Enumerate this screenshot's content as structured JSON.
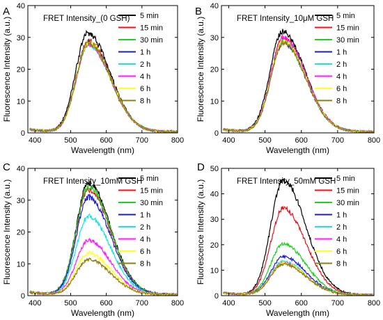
{
  "figure": {
    "legend_labels": [
      "5 min",
      "15 min",
      "30 min",
      "1 h",
      "2 h",
      "4 h",
      "6 h",
      "8 h"
    ],
    "series_colors": [
      "#000000",
      "#e8141b",
      "#1fd11f",
      "#1a1ad6",
      "#19e3e3",
      "#ff1aff",
      "#ffff19",
      "#8f7f12"
    ]
  },
  "chart_data": [
    {
      "panel": "A",
      "type": "line",
      "title": "FRET Intensity_(0 GSH)",
      "xlabel": "Wavelength (nm)",
      "ylabel": "Fluorescence Intensity (a.u.)",
      "xlim": [
        380,
        800
      ],
      "ylim": [
        0,
        40
      ],
      "xticks": [
        400,
        500,
        600,
        700,
        800
      ],
      "yticks": [
        0,
        10,
        20,
        30,
        40
      ],
      "legend_position": "top-right",
      "series": [
        {
          "name": "5 min",
          "peak": 31,
          "peak_wavelength": 548
        },
        {
          "name": "15 min",
          "peak": 28.5,
          "peak_wavelength": 550
        },
        {
          "name": "30 min",
          "peak": 27.5,
          "peak_wavelength": 550
        },
        {
          "name": "1 h",
          "peak": 28,
          "peak_wavelength": 550
        },
        {
          "name": "2 h",
          "peak": 27.5,
          "peak_wavelength": 550
        },
        {
          "name": "4 h",
          "peak": 27.5,
          "peak_wavelength": 550
        },
        {
          "name": "6 h",
          "peak": 28,
          "peak_wavelength": 550
        },
        {
          "name": "8 h",
          "peak": 28,
          "peak_wavelength": 550
        }
      ]
    },
    {
      "panel": "B",
      "type": "line",
      "title": "FRET Intensity_10μM GSH",
      "xlabel": "Wavelength (nm)",
      "ylabel": "Fluorescence Intensity (a.u.)",
      "xlim": [
        380,
        800
      ],
      "ylim": [
        0,
        40
      ],
      "xticks": [
        400,
        500,
        600,
        700,
        800
      ],
      "yticks": [
        0,
        10,
        20,
        30,
        40
      ],
      "legend_position": "top-right",
      "series": [
        {
          "name": "5 min",
          "peak": 31.5,
          "peak_wavelength": 548
        },
        {
          "name": "15 min",
          "peak": 29.5,
          "peak_wavelength": 550
        },
        {
          "name": "30 min",
          "peak": 28.5,
          "peak_wavelength": 550
        },
        {
          "name": "1 h",
          "peak": 28,
          "peak_wavelength": 550
        },
        {
          "name": "2 h",
          "peak": 28.5,
          "peak_wavelength": 550
        },
        {
          "name": "4 h",
          "peak": 29.5,
          "peak_wavelength": 550
        },
        {
          "name": "6 h",
          "peak": 28.5,
          "peak_wavelength": 550
        },
        {
          "name": "8 h",
          "peak": 28,
          "peak_wavelength": 550
        }
      ]
    },
    {
      "panel": "C",
      "type": "line",
      "title": "FRET Intensity_10mM GSH",
      "xlabel": "Wavelength (nm)",
      "ylabel": "Fluorescence Intensity (a.u.)",
      "xlim": [
        380,
        800
      ],
      "ylim": [
        0,
        40
      ],
      "xticks": [
        400,
        500,
        600,
        700,
        800
      ],
      "yticks": [
        0,
        10,
        20,
        30,
        40
      ],
      "legend_position": "top-right",
      "series": [
        {
          "name": "5 min",
          "peak": 35,
          "peak_wavelength": 550
        },
        {
          "name": "15 min",
          "peak": 33,
          "peak_wavelength": 550
        },
        {
          "name": "30 min",
          "peak": 34,
          "peak_wavelength": 550
        },
        {
          "name": "1 h",
          "peak": 30.5,
          "peak_wavelength": 550
        },
        {
          "name": "2 h",
          "peak": 24.5,
          "peak_wavelength": 550
        },
        {
          "name": "4 h",
          "peak": 17,
          "peak_wavelength": 550
        },
        {
          "name": "6 h",
          "peak": 13,
          "peak_wavelength": 550
        },
        {
          "name": "8 h",
          "peak": 11,
          "peak_wavelength": 550
        }
      ]
    },
    {
      "panel": "D",
      "type": "line",
      "title": "FRET Intensity_50mM GSH",
      "xlabel": "Wavelength (nm)",
      "ylabel": "Fluorescence Intensity (a.u.)",
      "xlim": [
        380,
        800
      ],
      "ylim": [
        0,
        50
      ],
      "xticks": [
        400,
        500,
        600,
        700,
        800
      ],
      "yticks": [
        0,
        10,
        20,
        30,
        40,
        50
      ],
      "legend_position": "top-right",
      "series": [
        {
          "name": "5 min",
          "peak": 45,
          "peak_wavelength": 550
        },
        {
          "name": "15 min",
          "peak": 34,
          "peak_wavelength": 550
        },
        {
          "name": "30 min",
          "peak": 20,
          "peak_wavelength": 550
        },
        {
          "name": "1 h",
          "peak": 15,
          "peak_wavelength": 550
        },
        {
          "name": "2 h",
          "peak": 13,
          "peak_wavelength": 550
        },
        {
          "name": "4 h",
          "peak": 12.5,
          "peak_wavelength": 550
        },
        {
          "name": "6 h",
          "peak": 12.5,
          "peak_wavelength": 550
        },
        {
          "name": "8 h",
          "peak": 12,
          "peak_wavelength": 550
        }
      ]
    }
  ]
}
